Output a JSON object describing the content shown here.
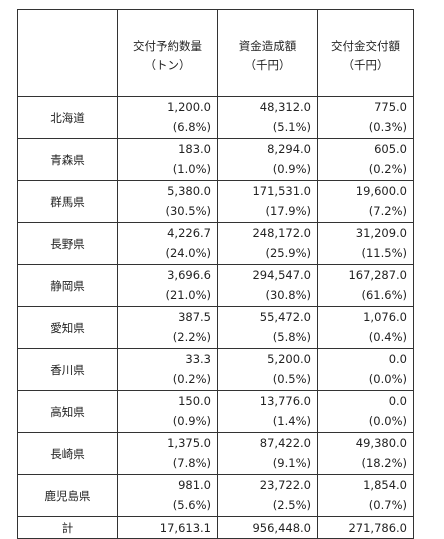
{
  "header": {
    "col1": {
      "line1": "交付予約数量",
      "line2": "（トン）"
    },
    "col2": {
      "line1": "資金造成額",
      "line2": "（千円）"
    },
    "col3": {
      "line1": "交付金交付額",
      "line2": "（千円）"
    }
  },
  "rows": [
    {
      "pref": "北海道",
      "qty": "1,200.0",
      "qty_pct": "(6.8%)",
      "fund": "48,312.0",
      "fund_pct": "(5.1%)",
      "grant": "775.0",
      "grant_pct": "(0.3%)"
    },
    {
      "pref": "青森県",
      "qty": "183.0",
      "qty_pct": "(1.0%)",
      "fund": "8,294.0",
      "fund_pct": "(0.9%)",
      "grant": "605.0",
      "grant_pct": "(0.2%)"
    },
    {
      "pref": "群馬県",
      "qty": "5,380.0",
      "qty_pct": "(30.5%)",
      "fund": "171,531.0",
      "fund_pct": "(17.9%)",
      "grant": "19,600.0",
      "grant_pct": "(7.2%)"
    },
    {
      "pref": "長野県",
      "qty": "4,226.7",
      "qty_pct": "(24.0%)",
      "fund": "248,172.0",
      "fund_pct": "(25.9%)",
      "grant": "31,209.0",
      "grant_pct": "(11.5%)"
    },
    {
      "pref": "静岡県",
      "qty": "3,696.6",
      "qty_pct": "(21.0%)",
      "fund": "294,547.0",
      "fund_pct": "(30.8%)",
      "grant": "167,287.0",
      "grant_pct": "(61.6%)"
    },
    {
      "pref": "愛知県",
      "qty": "387.5",
      "qty_pct": "(2.2%)",
      "fund": "55,472.0",
      "fund_pct": "(5.8%)",
      "grant": "1,076.0",
      "grant_pct": "(0.4%)"
    },
    {
      "pref": "香川県",
      "qty": "33.3",
      "qty_pct": "(0.2%)",
      "fund": "5,200.0",
      "fund_pct": "(0.5%)",
      "grant": "0.0",
      "grant_pct": "(0.0%)"
    },
    {
      "pref": "高知県",
      "qty": "150.0",
      "qty_pct": "(0.9%)",
      "fund": "13,776.0",
      "fund_pct": "(1.4%)",
      "grant": "0.0",
      "grant_pct": "(0.0%)"
    },
    {
      "pref": "長崎県",
      "qty": "1,375.0",
      "qty_pct": "(7.8%)",
      "fund": "87,422.0",
      "fund_pct": "(9.1%)",
      "grant": "49,380.0",
      "grant_pct": "(18.2%)"
    },
    {
      "pref": "鹿児島県",
      "qty": "981.0",
      "qty_pct": "(5.6%)",
      "fund": "23,722.0",
      "fund_pct": "(2.5%)",
      "grant": "1,854.0",
      "grant_pct": "(0.7%)"
    }
  ],
  "total": {
    "label": "計",
    "qty": "17,613.1",
    "fund": "956,448.0",
    "grant": "271,786.0"
  }
}
